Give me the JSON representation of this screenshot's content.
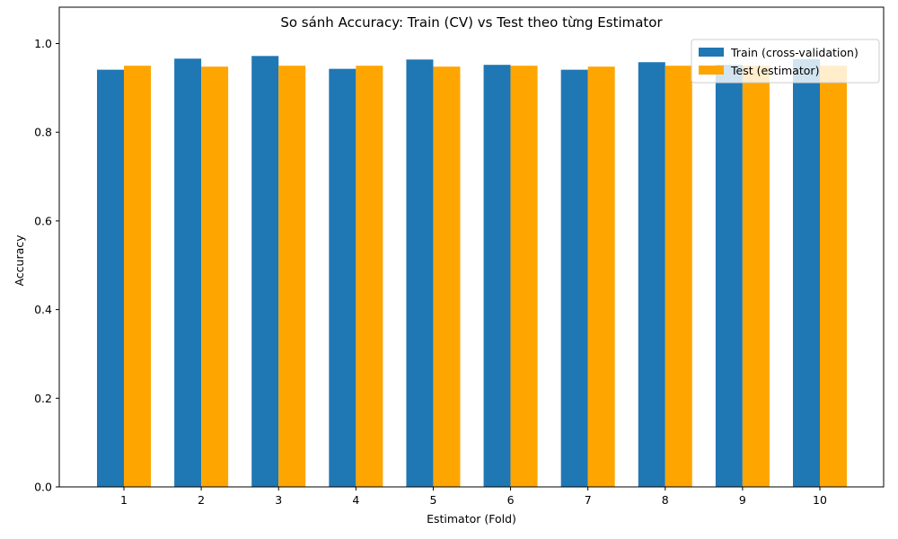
{
  "chart_data": {
    "type": "bar",
    "title": "So sánh Accuracy: Train (CV) vs Test theo từng Estimator",
    "xlabel": "Estimator (Fold)",
    "ylabel": "Accuracy",
    "categories": [
      "1",
      "2",
      "3",
      "4",
      "5",
      "6",
      "7",
      "8",
      "9",
      "10"
    ],
    "ylim": [
      0,
      1.0
    ],
    "yticks": [
      0.0,
      0.2,
      0.4,
      0.6,
      0.8,
      1.0
    ],
    "ytick_labels": [
      "0.0",
      "0.2",
      "0.4",
      "0.6",
      "0.8",
      "1.0"
    ],
    "grid": false,
    "legend_position": "top-right",
    "series": [
      {
        "name": "Train (cross-validation)",
        "color": "#1f77b4",
        "values": [
          0.941,
          0.966,
          0.972,
          0.943,
          0.964,
          0.952,
          0.941,
          0.958,
          0.952,
          0.965
        ]
      },
      {
        "name": "Test (estimator)",
        "color": "#ffa500",
        "values": [
          0.95,
          0.948,
          0.95,
          0.95,
          0.948,
          0.95,
          0.948,
          0.95,
          0.95,
          0.95
        ]
      }
    ]
  }
}
